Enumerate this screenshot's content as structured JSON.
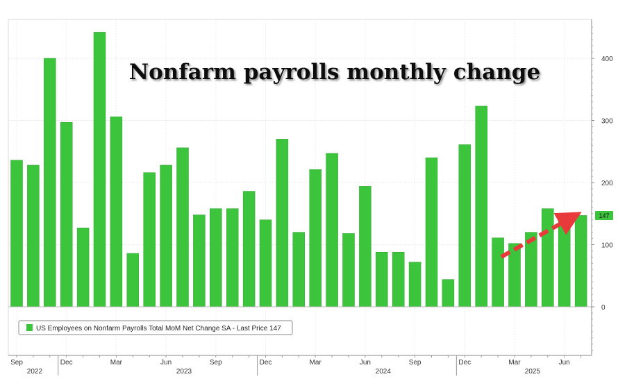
{
  "chart_data": {
    "type": "bar",
    "title": "Nonfarm payrolls monthly change",
    "legend": "US Employees on Nonfarm Payrolls Total MoM Net Change SA - Last Price 147",
    "legend_placement": "bottom-left",
    "last_value_label": "147",
    "grid": true,
    "ylim": [
      -75,
      460
    ],
    "yticks": [
      0,
      100,
      200,
      300,
      400
    ],
    "ytick_labels": [
      "0",
      "100",
      "200",
      "300",
      "400"
    ],
    "x_month_labels": [
      "Sep",
      "Dec",
      "Mar",
      "Jun",
      "Sep",
      "Dec",
      "Mar",
      "Jun",
      "Sep",
      "Dec",
      "Mar",
      "Jun"
    ],
    "x_month_label_bar_index": [
      0,
      3,
      6,
      9,
      12,
      15,
      18,
      21,
      24,
      27,
      30,
      33
    ],
    "x_year_labels": [
      "2022",
      "2023",
      "2024",
      "2025"
    ],
    "x_year_label_bar_index": [
      1,
      10,
      22,
      31
    ],
    "x_year_separator_bar_index": [
      3,
      15,
      27
    ],
    "colors": {
      "bar": "#3dc43d",
      "bar_edge": "#2ea22e",
      "arrow": "#e83a3a",
      "label_bg": "#3dc43d"
    },
    "values": [
      236,
      228,
      400,
      297,
      127,
      442,
      306,
      86,
      216,
      228,
      256,
      148,
      158,
      158,
      186,
      140,
      270,
      120,
      221,
      247,
      118,
      194,
      88,
      88,
      72,
      240,
      44,
      261,
      323,
      111,
      102,
      120,
      158,
      140,
      147
    ]
  }
}
